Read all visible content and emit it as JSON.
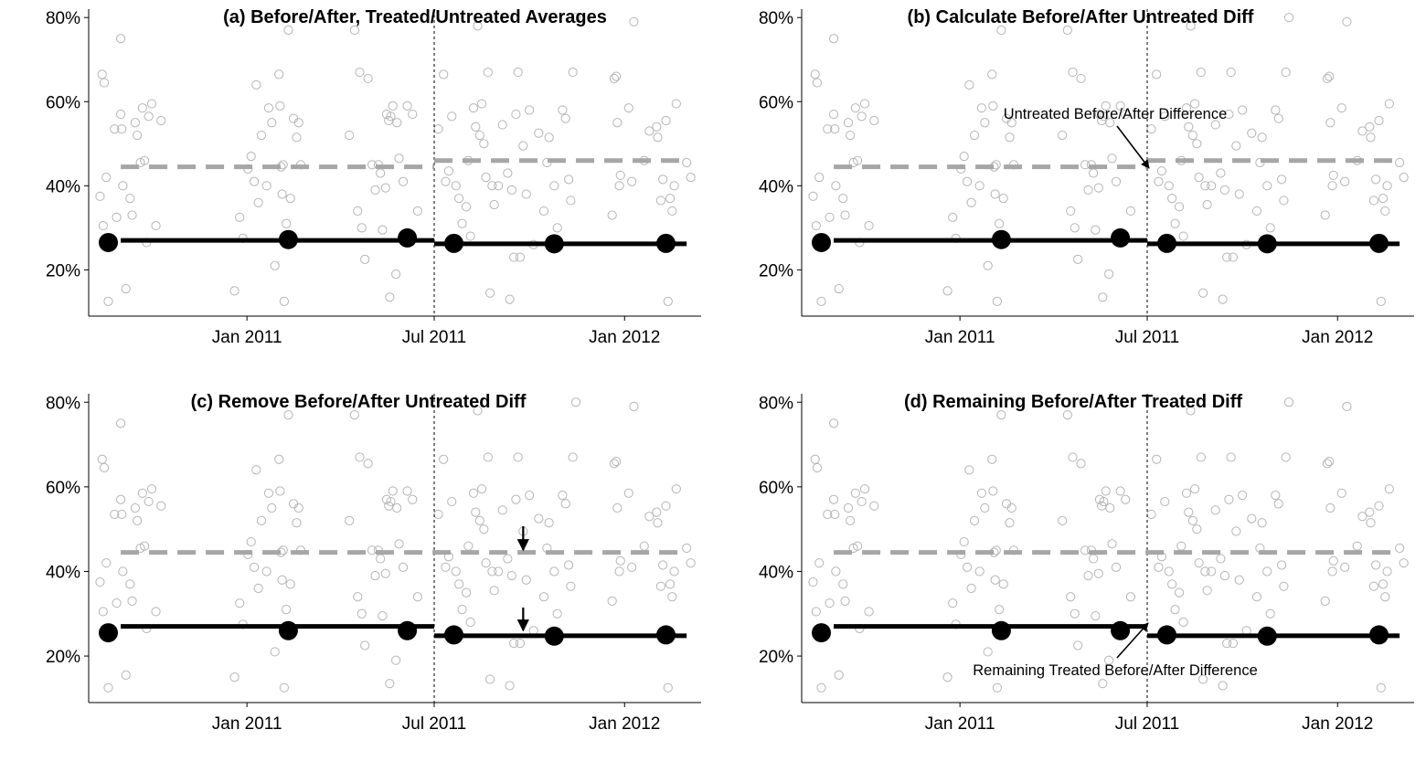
{
  "chart_data": [
    {
      "type": "scatter",
      "title": "(a) Before/After, Treated/Untreated Averages",
      "x_axis": {
        "ticks": [
          "Jan 2011",
          "Jul 2011",
          "Jan 2012"
        ],
        "range": [
          "2010-08-01",
          "2012-03-15"
        ]
      },
      "y_axis": {
        "ticks": [
          "20%",
          "40%",
          "60%",
          "80%"
        ],
        "range": [
          0.09,
          0.82
        ]
      },
      "treatment_date": "2011-07-01",
      "series": [
        {
          "kind": "untreated-average",
          "segments": [
            {
              "x": [
                "2010-09-01",
                "2011-07-01"
              ],
              "y": 0.445
            },
            {
              "x": [
                "2011-07-01",
                "2012-03-01"
              ],
              "y": 0.46
            }
          ]
        },
        {
          "kind": "treated-average",
          "segments": [
            {
              "x": [
                "2010-09-01",
                "2011-07-01"
              ],
              "y": 0.27
            },
            {
              "x": [
                "2011-07-01",
                "2012-03-01"
              ],
              "y": 0.262
            }
          ]
        },
        {
          "kind": "treated-points",
          "points": [
            {
              "x": "2010-08-20",
              "y": 0.265
            },
            {
              "x": "2011-02-10",
              "y": 0.272
            },
            {
              "x": "2011-06-05",
              "y": 0.276
            },
            {
              "x": "2011-07-20",
              "y": 0.263
            },
            {
              "x": "2011-10-25",
              "y": 0.262
            },
            {
              "x": "2012-02-10",
              "y": 0.263
            }
          ]
        }
      ]
    },
    {
      "type": "scatter",
      "title": "(b) Calculate Before/After Untreated Diff",
      "x_axis": {
        "ticks": [
          "Jan 2011",
          "Jul 2011",
          "Jan 2012"
        ],
        "range": [
          "2010-08-01",
          "2012-03-15"
        ]
      },
      "y_axis": {
        "ticks": [
          "20%",
          "40%",
          "60%",
          "80%"
        ],
        "range": [
          0.09,
          0.82
        ]
      },
      "treatment_date": "2011-07-01",
      "annotations": [
        {
          "text": "Untreated Before/After Difference"
        }
      ],
      "series": [
        {
          "kind": "untreated-average",
          "segments": [
            {
              "x": [
                "2010-09-01",
                "2011-07-01"
              ],
              "y": 0.445
            },
            {
              "x": [
                "2011-07-01",
                "2012-03-01"
              ],
              "y": 0.46
            }
          ]
        },
        {
          "kind": "treated-average",
          "segments": [
            {
              "x": [
                "2010-09-01",
                "2011-07-01"
              ],
              "y": 0.27
            },
            {
              "x": [
                "2011-07-01",
                "2012-03-01"
              ],
              "y": 0.262
            }
          ]
        },
        {
          "kind": "treated-points",
          "points": [
            {
              "x": "2010-08-20",
              "y": 0.265
            },
            {
              "x": "2011-02-10",
              "y": 0.272
            },
            {
              "x": "2011-06-05",
              "y": 0.276
            },
            {
              "x": "2011-07-20",
              "y": 0.263
            },
            {
              "x": "2011-10-25",
              "y": 0.262
            },
            {
              "x": "2012-02-10",
              "y": 0.263
            }
          ]
        }
      ]
    },
    {
      "type": "scatter",
      "title": "(c) Remove Before/After Untreated Diff",
      "x_axis": {
        "ticks": [
          "Jan 2011",
          "Jul 2011",
          "Jan 2012"
        ],
        "range": [
          "2010-08-01",
          "2012-03-15"
        ]
      },
      "y_axis": {
        "ticks": [
          "20%",
          "40%",
          "60%",
          "80%"
        ],
        "range": [
          0.09,
          0.82
        ]
      },
      "treatment_date": "2011-07-01",
      "series": [
        {
          "kind": "untreated-average",
          "segments": [
            {
              "x": [
                "2010-09-01",
                "2012-03-01"
              ],
              "y": 0.445
            }
          ]
        },
        {
          "kind": "treated-average",
          "segments": [
            {
              "x": [
                "2010-09-01",
                "2011-07-01"
              ],
              "y": 0.27
            },
            {
              "x": [
                "2011-07-01",
                "2012-03-01"
              ],
              "y": 0.248
            }
          ]
        },
        {
          "kind": "treated-points",
          "points": [
            {
              "x": "2010-08-20",
              "y": 0.255
            },
            {
              "x": "2011-02-10",
              "y": 0.26
            },
            {
              "x": "2011-06-05",
              "y": 0.26
            },
            {
              "x": "2011-07-20",
              "y": 0.25
            },
            {
              "x": "2011-10-25",
              "y": 0.247
            },
            {
              "x": "2012-02-10",
              "y": 0.25
            }
          ]
        }
      ]
    },
    {
      "type": "scatter",
      "title": "(d) Remaining Before/After Treated Diff",
      "x_axis": {
        "ticks": [
          "Jan 2011",
          "Jul 2011",
          "Jan 2012"
        ],
        "range": [
          "2010-08-01",
          "2012-03-15"
        ]
      },
      "y_axis": {
        "ticks": [
          "20%",
          "40%",
          "60%",
          "80%"
        ],
        "range": [
          0.09,
          0.82
        ]
      },
      "treatment_date": "2011-07-01",
      "annotations": [
        {
          "text": "Remaining Treated Before/After Difference"
        }
      ],
      "series": [
        {
          "kind": "untreated-average",
          "segments": [
            {
              "x": [
                "2010-09-01",
                "2012-03-01"
              ],
              "y": 0.445
            }
          ]
        },
        {
          "kind": "treated-average",
          "segments": [
            {
              "x": [
                "2010-09-01",
                "2011-07-01"
              ],
              "y": 0.27
            },
            {
              "x": [
                "2011-07-01",
                "2012-03-01"
              ],
              "y": 0.248
            }
          ]
        },
        {
          "kind": "treated-points",
          "points": [
            {
              "x": "2010-08-20",
              "y": 0.255
            },
            {
              "x": "2011-02-10",
              "y": 0.26
            },
            {
              "x": "2011-06-05",
              "y": 0.26
            },
            {
              "x": "2011-07-20",
              "y": 0.25
            },
            {
              "x": "2011-10-25",
              "y": 0.247
            },
            {
              "x": "2012-02-10",
              "y": 0.25
            }
          ]
        }
      ]
    }
  ],
  "untreated_points": [
    [
      "2010-08-12",
      0.375
    ],
    [
      "2010-08-14",
      0.665
    ],
    [
      "2010-08-16",
      0.645
    ],
    [
      "2010-08-18",
      0.42
    ],
    [
      "2010-08-15",
      0.305
    ],
    [
      "2010-08-20",
      0.125
    ],
    [
      "2010-08-26",
      0.535
    ],
    [
      "2010-08-28",
      0.325
    ],
    [
      "2010-09-01",
      0.75
    ],
    [
      "2010-09-01",
      0.57
    ],
    [
      "2010-09-02",
      0.535
    ],
    [
      "2010-09-03",
      0.4
    ],
    [
      "2010-09-06",
      0.155
    ],
    [
      "2010-09-10",
      0.37
    ],
    [
      "2010-09-12",
      0.33
    ],
    [
      "2010-09-15",
      0.55
    ],
    [
      "2010-09-17",
      0.52
    ],
    [
      "2010-09-20",
      0.455
    ],
    [
      "2010-09-22",
      0.585
    ],
    [
      "2010-09-24",
      0.46
    ],
    [
      "2010-09-26",
      0.265
    ],
    [
      "2010-09-28",
      0.565
    ],
    [
      "2010-10-01",
      0.595
    ],
    [
      "2010-10-05",
      0.305
    ],
    [
      "2010-10-10",
      0.555
    ],
    [
      "2010-12-20",
      0.15
    ],
    [
      "2010-12-25",
      0.325
    ],
    [
      "2010-12-28",
      0.275
    ],
    [
      "2011-01-02",
      0.44
    ],
    [
      "2011-01-05",
      0.47
    ],
    [
      "2011-01-08",
      0.41
    ],
    [
      "2011-01-10",
      0.64
    ],
    [
      "2011-01-12",
      0.36
    ],
    [
      "2011-01-15",
      0.52
    ],
    [
      "2011-01-20",
      0.4
    ],
    [
      "2011-01-22",
      0.585
    ],
    [
      "2011-01-25",
      0.55
    ],
    [
      "2011-01-28",
      0.21
    ],
    [
      "2011-02-01",
      0.665
    ],
    [
      "2011-02-02",
      0.59
    ],
    [
      "2011-02-03",
      0.445
    ],
    [
      "2011-02-04",
      0.38
    ],
    [
      "2011-02-05",
      0.45
    ],
    [
      "2011-02-06",
      0.125
    ],
    [
      "2011-02-08",
      0.31
    ],
    [
      "2011-02-10",
      0.77
    ],
    [
      "2011-02-12",
      0.37
    ],
    [
      "2011-02-15",
      0.56
    ],
    [
      "2011-02-18",
      0.515
    ],
    [
      "2011-02-20",
      0.55
    ],
    [
      "2011-02-22",
      0.45
    ],
    [
      "2011-04-10",
      0.52
    ],
    [
      "2011-04-15",
      0.77
    ],
    [
      "2011-04-18",
      0.34
    ],
    [
      "2011-04-20",
      0.67
    ],
    [
      "2011-04-22",
      0.3
    ],
    [
      "2011-04-25",
      0.225
    ],
    [
      "2011-04-28",
      0.655
    ],
    [
      "2011-05-02",
      0.45
    ],
    [
      "2011-05-05",
      0.39
    ],
    [
      "2011-05-08",
      0.45
    ],
    [
      "2011-05-10",
      0.43
    ],
    [
      "2011-05-12",
      0.295
    ],
    [
      "2011-05-15",
      0.395
    ],
    [
      "2011-05-16",
      0.57
    ],
    [
      "2011-05-18",
      0.555
    ],
    [
      "2011-05-19",
      0.135
    ],
    [
      "2011-05-20",
      0.565
    ],
    [
      "2011-05-22",
      0.59
    ],
    [
      "2011-05-25",
      0.19
    ],
    [
      "2011-05-26",
      0.55
    ],
    [
      "2011-05-28",
      0.465
    ],
    [
      "2011-06-01",
      0.41
    ],
    [
      "2011-06-05",
      0.59
    ],
    [
      "2011-06-10",
      0.57
    ],
    [
      "2011-06-15",
      0.34
    ],
    [
      "2011-07-05",
      0.535
    ],
    [
      "2011-07-10",
      0.665
    ],
    [
      "2011-07-12",
      0.41
    ],
    [
      "2011-07-15",
      0.435
    ],
    [
      "2011-07-18",
      0.565
    ],
    [
      "2011-07-20",
      0.255
    ],
    [
      "2011-07-22",
      0.4
    ],
    [
      "2011-07-25",
      0.37
    ],
    [
      "2011-07-28",
      0.31
    ],
    [
      "2011-08-01",
      0.35
    ],
    [
      "2011-08-03",
      0.46
    ],
    [
      "2011-08-05",
      0.28
    ],
    [
      "2011-08-08",
      0.585
    ],
    [
      "2011-08-10",
      0.54
    ],
    [
      "2011-08-12",
      0.78
    ],
    [
      "2011-08-14",
      0.52
    ],
    [
      "2011-08-16",
      0.595
    ],
    [
      "2011-08-18",
      0.5
    ],
    [
      "2011-08-20",
      0.42
    ],
    [
      "2011-08-22",
      0.67
    ],
    [
      "2011-08-24",
      0.145
    ],
    [
      "2011-08-26",
      0.4
    ],
    [
      "2011-08-28",
      0.355
    ],
    [
      "2011-09-01",
      0.4
    ],
    [
      "2011-09-05",
      0.545
    ],
    [
      "2011-09-10",
      0.43
    ],
    [
      "2011-09-12",
      0.13
    ],
    [
      "2011-09-14",
      0.39
    ],
    [
      "2011-09-16",
      0.23
    ],
    [
      "2011-09-18",
      0.57
    ],
    [
      "2011-09-20",
      0.67
    ],
    [
      "2011-09-22",
      0.23
    ],
    [
      "2011-09-25",
      0.495
    ],
    [
      "2011-09-28",
      0.38
    ],
    [
      "2011-10-01",
      0.58
    ],
    [
      "2011-10-05",
      0.26
    ],
    [
      "2011-10-10",
      0.525
    ],
    [
      "2011-10-15",
      0.34
    ],
    [
      "2011-10-18",
      0.455
    ],
    [
      "2011-10-20",
      0.515
    ],
    [
      "2011-10-25",
      0.4
    ],
    [
      "2011-10-28",
      0.3
    ],
    [
      "2011-11-02",
      0.58
    ],
    [
      "2011-11-05",
      0.56
    ],
    [
      "2011-11-08",
      0.415
    ],
    [
      "2011-11-10",
      0.365
    ],
    [
      "2011-11-12",
      0.67
    ],
    [
      "2011-11-15",
      0.8
    ],
    [
      "2011-12-20",
      0.33
    ],
    [
      "2011-12-22",
      0.655
    ],
    [
      "2011-12-24",
      0.66
    ],
    [
      "2011-12-25",
      0.55
    ],
    [
      "2011-12-27",
      0.4
    ],
    [
      "2011-12-28",
      0.425
    ],
    [
      "2012-01-05",
      0.585
    ],
    [
      "2012-01-08",
      0.41
    ],
    [
      "2012-01-10",
      0.79
    ],
    [
      "2012-01-20",
      0.46
    ],
    [
      "2012-01-25",
      0.53
    ],
    [
      "2012-02-01",
      0.54
    ],
    [
      "2012-02-02",
      0.515
    ],
    [
      "2012-02-05",
      0.365
    ],
    [
      "2012-02-07",
      0.415
    ],
    [
      "2012-02-10",
      0.555
    ],
    [
      "2012-02-12",
      0.125
    ],
    [
      "2012-02-14",
      0.37
    ],
    [
      "2012-02-16",
      0.34
    ],
    [
      "2012-02-18",
      0.4
    ],
    [
      "2012-02-20",
      0.595
    ],
    [
      "2012-03-01",
      0.455
    ],
    [
      "2012-03-05",
      0.42
    ]
  ]
}
